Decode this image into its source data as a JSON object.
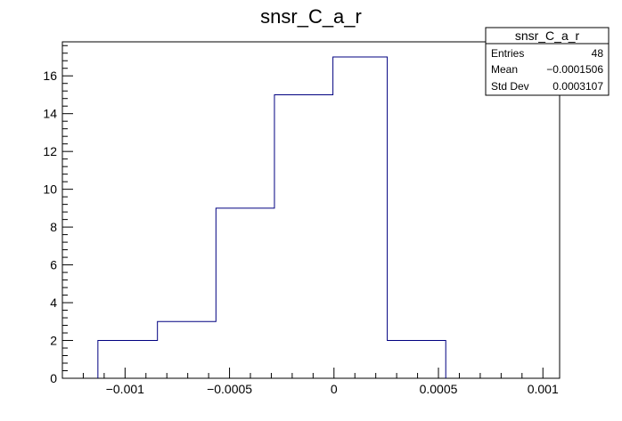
{
  "chart_data": {
    "type": "histogram",
    "title": "snsr_C_a_r",
    "xlabel": "",
    "ylabel": "",
    "bin_edges": [
      -0.00113,
      -0.000845,
      -0.000565,
      -0.000285,
      -5e-06,
      0.000255,
      0.000535
    ],
    "values": [
      2,
      3,
      9,
      15,
      17,
      2
    ],
    "xlim": [
      -0.0013,
      0.00108
    ],
    "ylim": [
      0,
      17.8
    ],
    "x_ticks": [
      {
        "value": -0.001,
        "label": "−0.001"
      },
      {
        "value": -0.0005,
        "label": "−0.0005"
      },
      {
        "value": 0,
        "label": "0"
      },
      {
        "value": 0.0005,
        "label": "0.0005"
      },
      {
        "value": 0.001,
        "label": "0.001"
      }
    ],
    "y_ticks": [
      {
        "value": 0,
        "label": "0"
      },
      {
        "value": 2,
        "label": "2"
      },
      {
        "value": 4,
        "label": "4"
      },
      {
        "value": 6,
        "label": "6"
      },
      {
        "value": 8,
        "label": "8"
      },
      {
        "value": 10,
        "label": "10"
      },
      {
        "value": 12,
        "label": "12"
      },
      {
        "value": 14,
        "label": "14"
      },
      {
        "value": 16,
        "label": "16"
      }
    ],
    "line_color": "#000080",
    "grid": false,
    "legend": "none",
    "stats_box": {
      "title": "snsr_C_a_r",
      "placement": "top-right",
      "rows": [
        {
          "label": "Entries",
          "value": "48"
        },
        {
          "label": "Mean",
          "value": "−0.0001506"
        },
        {
          "label": "Std Dev",
          "value": "0.0003107"
        }
      ]
    }
  }
}
